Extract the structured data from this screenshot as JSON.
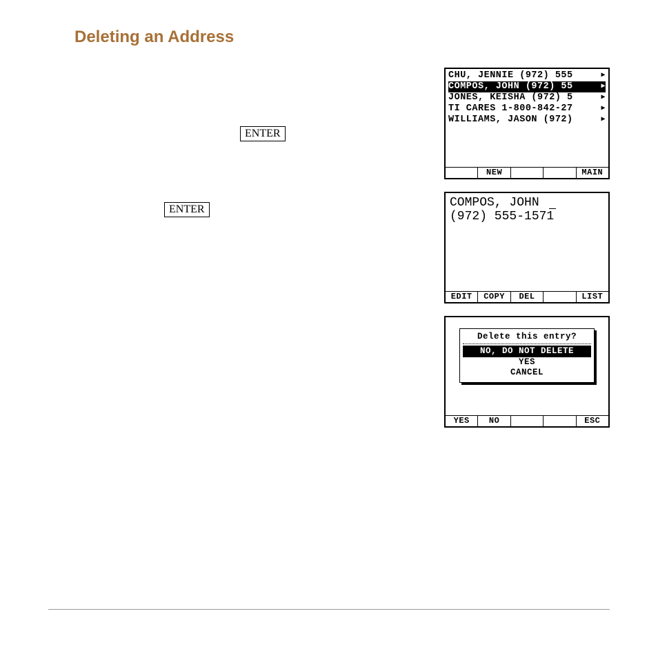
{
  "heading": "Deleting an Address",
  "keys": {
    "enter1": "ENTER",
    "enter2": "ENTER"
  },
  "screen1": {
    "rows": [
      {
        "text": "CHU, JENNIE  (972) 555",
        "arrow": true,
        "selected": false
      },
      {
        "text": "COMPOS, JOHN  (972) 55",
        "arrow": true,
        "selected": true
      },
      {
        "text": "JONES, KEISHA  (972) 5",
        "arrow": true,
        "selected": false
      },
      {
        "text": "TI CARES  1-800-842-27",
        "arrow": true,
        "selected": false
      },
      {
        "text": "WILLIAMS, JASON  (972)",
        "arrow": true,
        "selected": false
      }
    ],
    "menu": [
      "",
      "NEW",
      "",
      "",
      "MAIN"
    ]
  },
  "screen2": {
    "line1": "COMPOS, JOHN",
    "line2": "(972) 555-1571",
    "menu": [
      "EDIT",
      "COPY",
      "DEL",
      "",
      "LIST"
    ]
  },
  "screen3": {
    "dialog": {
      "title": "Delete this entry?",
      "options": [
        {
          "text": "NO, DO NOT DELETE",
          "selected": true
        },
        {
          "text": "YES",
          "selected": false
        },
        {
          "text": "CANCEL",
          "selected": false
        }
      ]
    },
    "menu": [
      "YES",
      "NO",
      "",
      "",
      "ESC"
    ]
  },
  "colors": {
    "heading": "#a77036",
    "border": "#000000",
    "bg": "#ffffff",
    "text": "#000000",
    "hr": "#999999"
  }
}
